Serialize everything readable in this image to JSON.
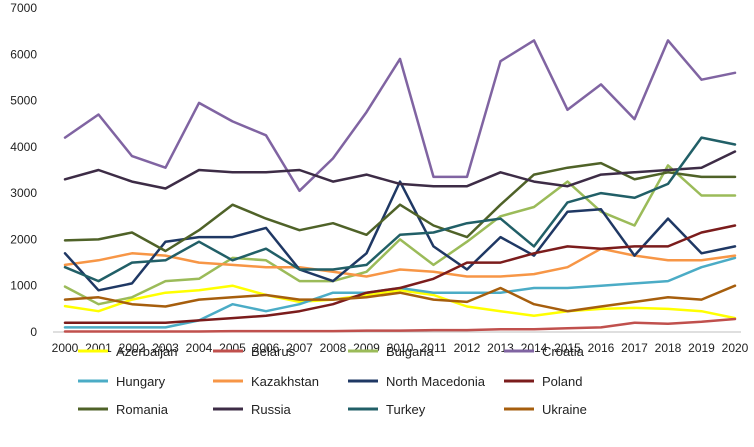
{
  "chart_data": {
    "type": "line",
    "title": "",
    "xlabel": "",
    "ylabel": "",
    "ylim": [
      0,
      7000
    ],
    "yticks": [
      0,
      1000,
      2000,
      3000,
      4000,
      5000,
      6000,
      7000
    ],
    "grid": false,
    "legend_position": "bottom",
    "x": [
      "2000",
      "2001",
      "2002",
      "2003",
      "2004",
      "2005",
      "2006",
      "2007",
      "2008",
      "2009",
      "2010",
      "2011",
      "2012",
      "2013",
      "2014",
      "2015",
      "2016",
      "2017",
      "2018",
      "2019",
      "2020"
    ],
    "series": [
      {
        "name": "Azerbaijan",
        "color": "#ffff00",
        "values": [
          560,
          450,
          700,
          850,
          900,
          1000,
          800,
          650,
          700,
          800,
          900,
          800,
          550,
          450,
          350,
          450,
          500,
          520,
          500,
          450,
          300
        ]
      },
      {
        "name": "Belarus",
        "color": "#c0504d",
        "values": [
          10,
          10,
          10,
          10,
          10,
          20,
          20,
          20,
          20,
          30,
          30,
          40,
          40,
          60,
          60,
          80,
          100,
          200,
          180,
          220,
          280
        ]
      },
      {
        "name": "Bulgaria",
        "color": "#9bbb59",
        "values": [
          980,
          600,
          750,
          1100,
          1150,
          1600,
          1550,
          1100,
          1100,
          1300,
          2000,
          1450,
          1950,
          2500,
          2700,
          3250,
          2600,
          2300,
          3600,
          2950,
          2950
        ]
      },
      {
        "name": "Croatia",
        "color": "#8064a2",
        "values": [
          4200,
          4700,
          3800,
          3550,
          4950,
          4550,
          4250,
          3050,
          3750,
          4750,
          5900,
          3350,
          3350,
          5850,
          6300,
          4800,
          5350,
          4600,
          6300,
          5450,
          5600
        ]
      },
      {
        "name": "Hungary",
        "color": "#4bacc6",
        "values": [
          100,
          100,
          100,
          100,
          250,
          600,
          450,
          600,
          850,
          850,
          950,
          850,
          850,
          850,
          950,
          950,
          1000,
          1050,
          1100,
          1400,
          1600
        ]
      },
      {
        "name": "Kazakhstan",
        "color": "#f79646",
        "values": [
          1450,
          1550,
          1700,
          1650,
          1500,
          1450,
          1400,
          1400,
          1300,
          1200,
          1350,
          1300,
          1200,
          1200,
          1250,
          1400,
          1800,
          1650,
          1550,
          1550,
          1650
        ]
      },
      {
        "name": "North Macedonia",
        "color": "#1f3864",
        "values": [
          1700,
          900,
          1050,
          1950,
          2050,
          2050,
          2250,
          1350,
          1100,
          1700,
          3250,
          1850,
          1350,
          2050,
          1650,
          2600,
          2650,
          1650,
          2450,
          1700,
          1850
        ]
      },
      {
        "name": "Poland",
        "color": "#7b1c1c",
        "values": [
          200,
          200,
          200,
          200,
          250,
          300,
          350,
          450,
          600,
          850,
          950,
          1150,
          1500,
          1500,
          1700,
          1850,
          1800,
          1850,
          1850,
          2150,
          2300
        ]
      },
      {
        "name": "Romania",
        "color": "#4f6228",
        "values": [
          1980,
          2000,
          2150,
          1750,
          2200,
          2750,
          2450,
          2200,
          2350,
          2100,
          2750,
          2300,
          2050,
          2750,
          3400,
          3550,
          3650,
          3300,
          3450,
          3350,
          3350
        ]
      },
      {
        "name": "Russia",
        "color": "#3d2c46",
        "values": [
          3300,
          3500,
          3250,
          3100,
          3500,
          3450,
          3450,
          3500,
          3250,
          3400,
          3200,
          3150,
          3150,
          3450,
          3250,
          3150,
          3400,
          3450,
          3500,
          3550,
          3900
        ]
      },
      {
        "name": "Turkey",
        "color": "#215f67",
        "values": [
          1400,
          1100,
          1500,
          1550,
          1950,
          1550,
          1800,
          1350,
          1350,
          1450,
          2100,
          2150,
          2350,
          2450,
          1850,
          2800,
          3000,
          2900,
          3200,
          4200,
          4050
        ]
      },
      {
        "name": "Ukraine",
        "color": "#a65e0d",
        "values": [
          700,
          750,
          600,
          550,
          700,
          750,
          800,
          700,
          700,
          750,
          850,
          700,
          650,
          950,
          600,
          450,
          550,
          650,
          750,
          700,
          1000
        ]
      }
    ]
  }
}
